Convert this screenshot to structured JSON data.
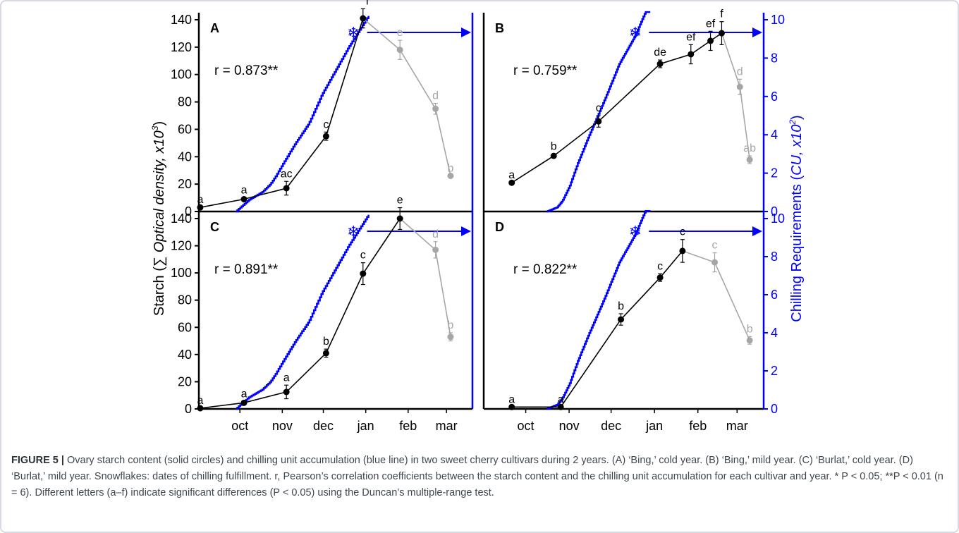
{
  "chart_data": {
    "type": "line",
    "shared_x_tick_labels": [
      "oct",
      "nov",
      "dec",
      "jan",
      "feb",
      "mar"
    ],
    "left_axis_label": "Starch (∑ Optical density, x10³)",
    "right_axis_label": "Chilling Requirements (CU, x10²)",
    "left_ylim": [
      0,
      140
    ],
    "left_ticks": [
      0,
      20,
      40,
      60,
      80,
      100,
      120,
      140
    ],
    "right_ylim": [
      0,
      10
    ],
    "right_ticks": [
      0,
      2,
      4,
      6,
      8,
      10
    ],
    "colors": {
      "starch": "#000000",
      "starch_after": "#a6a6a6",
      "chilling": "#0000ff"
    },
    "panels": [
      {
        "label": "A",
        "r_text": "r = 0.873**",
        "starch": [
          {
            "x": 1,
            "y": 3,
            "err": 0,
            "letter": "a",
            "gray": false
          },
          {
            "x": 33,
            "y": 9,
            "err": 1,
            "letter": "a",
            "gray": false
          },
          {
            "x": 64,
            "y": 17,
            "err": 5,
            "letter": "ac",
            "gray": false
          },
          {
            "x": 93,
            "y": 55,
            "err": 3,
            "letter": "c",
            "gray": false
          },
          {
            "x": 120,
            "y": 141,
            "err": 7,
            "letter": "f",
            "gray": false
          },
          {
            "x": 147,
            "y": 118,
            "err": 7,
            "letter": "e",
            "gray": true
          },
          {
            "x": 173,
            "y": 75,
            "err": 4,
            "letter": "d",
            "gray": true
          },
          {
            "x": 184,
            "y": 26,
            "err": 0,
            "letter": "b",
            "gray": true
          }
        ],
        "chill_start": 27,
        "chill_end": 124,
        "chill_max": 10.2,
        "chill_shape": [
          [
            0,
            0
          ],
          [
            0.1,
            0.06
          ],
          [
            0.2,
            0.1
          ],
          [
            0.26,
            0.14
          ],
          [
            0.3,
            0.18
          ],
          [
            0.36,
            0.25
          ],
          [
            0.45,
            0.35
          ],
          [
            0.55,
            0.45
          ],
          [
            0.65,
            0.6
          ],
          [
            0.75,
            0.72
          ],
          [
            0.85,
            0.84
          ],
          [
            1,
            1
          ]
        ],
        "chill_fulfilled_x": 124
      },
      {
        "label": "B",
        "r_text": "r = 0.759**",
        "starch": [
          {
            "x": 20,
            "y": 1.5,
            "err": 0,
            "letter": "a",
            "gray": false
          },
          {
            "x": 50,
            "y": 2.9,
            "err": 0.1,
            "letter": "b",
            "gray": false
          },
          {
            "x": 82,
            "y": 4.7,
            "err": 0.3,
            "letter": "c",
            "gray": false
          },
          {
            "x": 126,
            "y": 7.7,
            "err": 0.2,
            "letter": "de",
            "gray": false
          },
          {
            "x": 148,
            "y": 8.2,
            "err": 0.5,
            "letter": "ef",
            "gray": false
          },
          {
            "x": 162,
            "y": 8.9,
            "err": 0.5,
            "letter": "ef",
            "gray": false
          },
          {
            "x": 170,
            "y": 9.3,
            "err": 0.6,
            "letter": "f",
            "gray": false
          },
          {
            "x": 183,
            "y": 6.5,
            "err": 0.4,
            "letter": "d",
            "gray": true
          },
          {
            "x": 190,
            "y": 2.7,
            "err": 0.2,
            "letter": "ab",
            "gray": true
          }
        ],
        "chill_start": 45,
        "chill_end": 119,
        "chill_max": 11,
        "chill_shape": [
          [
            0,
            0
          ],
          [
            0.1,
            0.02
          ],
          [
            0.15,
            0.05
          ],
          [
            0.22,
            0.12
          ],
          [
            0.3,
            0.23
          ],
          [
            0.4,
            0.35
          ],
          [
            0.55,
            0.52
          ],
          [
            0.7,
            0.7
          ],
          [
            0.85,
            0.83
          ],
          [
            1,
            1
          ]
        ],
        "chill_fulfilled_x": 119
      },
      {
        "label": "C",
        "r_text": "r = 0.891**",
        "starch": [
          {
            "x": 1,
            "y": 0.5,
            "err": 0,
            "letter": "a",
            "gray": false
          },
          {
            "x": 33,
            "y": 4.5,
            "err": 1,
            "letter": "a",
            "gray": false
          },
          {
            "x": 64,
            "y": 12.5,
            "err": 5,
            "letter": "a",
            "gray": false
          },
          {
            "x": 93,
            "y": 41,
            "err": 3,
            "letter": "b",
            "gray": false
          },
          {
            "x": 120,
            "y": 99.5,
            "err": 8,
            "letter": "c",
            "gray": false
          },
          {
            "x": 147,
            "y": 140,
            "err": 8,
            "letter": "e",
            "gray": false
          },
          {
            "x": 173,
            "y": 117,
            "err": 6,
            "letter": "d",
            "gray": true
          },
          {
            "x": 184,
            "y": 53,
            "err": 3,
            "letter": "b",
            "gray": true
          }
        ],
        "chill_start": 27,
        "chill_end": 124,
        "chill_max": 10.2,
        "chill_shape": [
          [
            0,
            0
          ],
          [
            0.1,
            0.06
          ],
          [
            0.2,
            0.1
          ],
          [
            0.26,
            0.14
          ],
          [
            0.3,
            0.18
          ],
          [
            0.36,
            0.25
          ],
          [
            0.45,
            0.35
          ],
          [
            0.55,
            0.45
          ],
          [
            0.65,
            0.6
          ],
          [
            0.75,
            0.72
          ],
          [
            0.85,
            0.84
          ],
          [
            1,
            1
          ]
        ],
        "chill_fulfilled_x": 124
      },
      {
        "label": "D",
        "r_text": "r = 0.822**",
        "starch": [
          {
            "x": 20,
            "y": 0.1,
            "err": 0,
            "letter": "a",
            "gray": false
          },
          {
            "x": 55,
            "y": 0.1,
            "err": 0,
            "letter": "a",
            "gray": false
          },
          {
            "x": 98,
            "y": 4.7,
            "err": 0.3,
            "letter": "b",
            "gray": false
          },
          {
            "x": 126,
            "y": 6.9,
            "err": 0.2,
            "letter": "c",
            "gray": false
          },
          {
            "x": 142,
            "y": 8.3,
            "err": 0.6,
            "letter": "c",
            "gray": false
          },
          {
            "x": 165,
            "y": 7.7,
            "err": 0.5,
            "letter": "c",
            "gray": true
          },
          {
            "x": 190,
            "y": 3.6,
            "err": 0.2,
            "letter": "b",
            "gray": true
          }
        ],
        "chill_start": 45,
        "chill_end": 119,
        "chill_max": 11,
        "chill_shape": [
          [
            0,
            0
          ],
          [
            0.1,
            0.02
          ],
          [
            0.15,
            0.05
          ],
          [
            0.22,
            0.12
          ],
          [
            0.3,
            0.23
          ],
          [
            0.4,
            0.35
          ],
          [
            0.55,
            0.52
          ],
          [
            0.7,
            0.7
          ],
          [
            0.85,
            0.83
          ],
          [
            1,
            1
          ]
        ],
        "chill_fulfilled_x": 119
      }
    ]
  },
  "caption": {
    "label": "FIGURE 5 |",
    "text": " Ovary starch content (solid circles) and chilling unit accumulation (blue line) in two sweet cherry cultivars during 2 years. (A) ‘Bing,’ cold year. (B) ‘Bing,’ mild year. (C) ‘Burlat,’ cold year. (D) ‘Burlat,’ mild year. Snowflakes: dates of chilling fulfillment. r, Pearson’s correlation coefficients between the starch content and the chilling unit accumulation for each cultivar and year. * P < 0.05; **P < 0.01 (n = 6). Different letters (a–f) indicate significant differences (P < 0.05) using the Duncan’s multiple-range test."
  }
}
